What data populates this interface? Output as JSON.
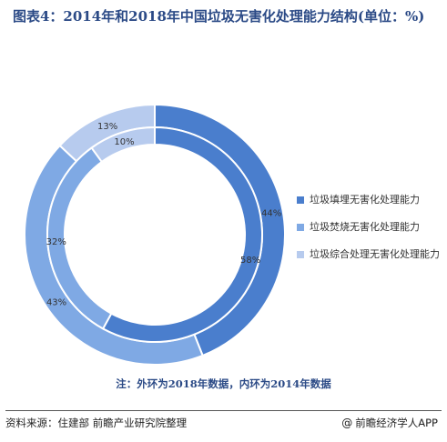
{
  "title": "图表4：2014年和2018年中国垃圾无害化处理能力结构(单位：%)",
  "note": "注：外环为2018年数据，内环为2014年数据",
  "source": "资料来源：住建部 前瞻产业研究院整理",
  "brand": {
    "icon": "@",
    "label": "前瞻经济学人APP"
  },
  "colors": {
    "series": [
      "#4a7ecd",
      "#7fa9e4",
      "#b7cbee"
    ]
  },
  "chart_data": {
    "type": "pie",
    "title": "图表4：2014年和2018年中国垃圾无害化处理能力结构(单位：%)",
    "categories": [
      "垃圾填埋无害化处理能力",
      "垃圾焚烧无害化处理能力",
      "垃圾综合处理无害化处理能力"
    ],
    "series": [
      {
        "ring": "outer",
        "values": [
          44,
          43,
          13
        ]
      },
      {
        "ring": "inner",
        "values": [
          58,
          32,
          10
        ]
      }
    ],
    "legend": "right",
    "unit": "%"
  }
}
